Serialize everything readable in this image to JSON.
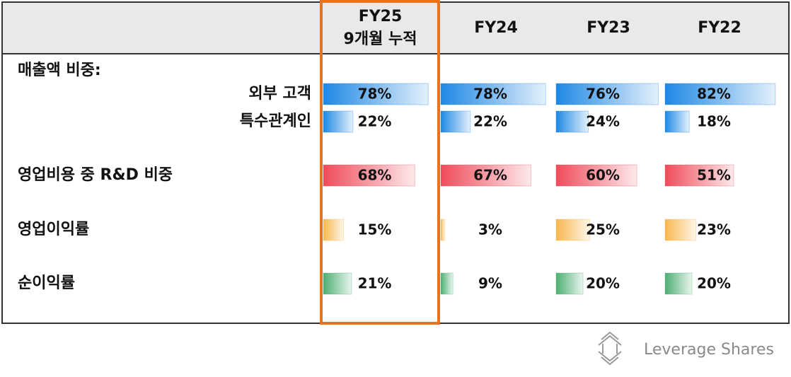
{
  "columns": [
    {
      "title": "FY25",
      "subtitle": "9개월 누적"
    },
    {
      "title": "FY24"
    },
    {
      "title": "FY23"
    },
    {
      "title": "FY22"
    }
  ],
  "section": {
    "label": "매출액 비중:",
    "rows": [
      {
        "label": "외부 고객",
        "color": "#1e88e5",
        "values": [
          78,
          78,
          76,
          82
        ],
        "value_labels": [
          "78%",
          "78%",
          "76%",
          "82%"
        ]
      },
      {
        "label": "특수관계인",
        "color": "#1e88e5",
        "values": [
          22,
          22,
          24,
          18
        ],
        "value_labels": [
          "22%",
          "22%",
          "24%",
          "18%"
        ]
      }
    ]
  },
  "rows": [
    {
      "label": "영업비용 중 R&D 비중",
      "color": "#ef4b5a",
      "values": [
        68,
        67,
        60,
        51
      ],
      "value_labels": [
        "68%",
        "67%",
        "60%",
        "51%"
      ]
    },
    {
      "label": "영업이익률",
      "color": "#f8b84e",
      "values": [
        15,
        3,
        25,
        23
      ],
      "value_labels": [
        "15%",
        "3%",
        "25%",
        "23%"
      ]
    },
    {
      "label": "순이익률",
      "color": "#4caf73",
      "values": [
        21,
        9,
        20,
        20
      ],
      "value_labels": [
        "21%",
        "9%",
        "20%",
        "20%"
      ]
    }
  ],
  "footer": {
    "brand": "Leverage Shares"
  }
}
